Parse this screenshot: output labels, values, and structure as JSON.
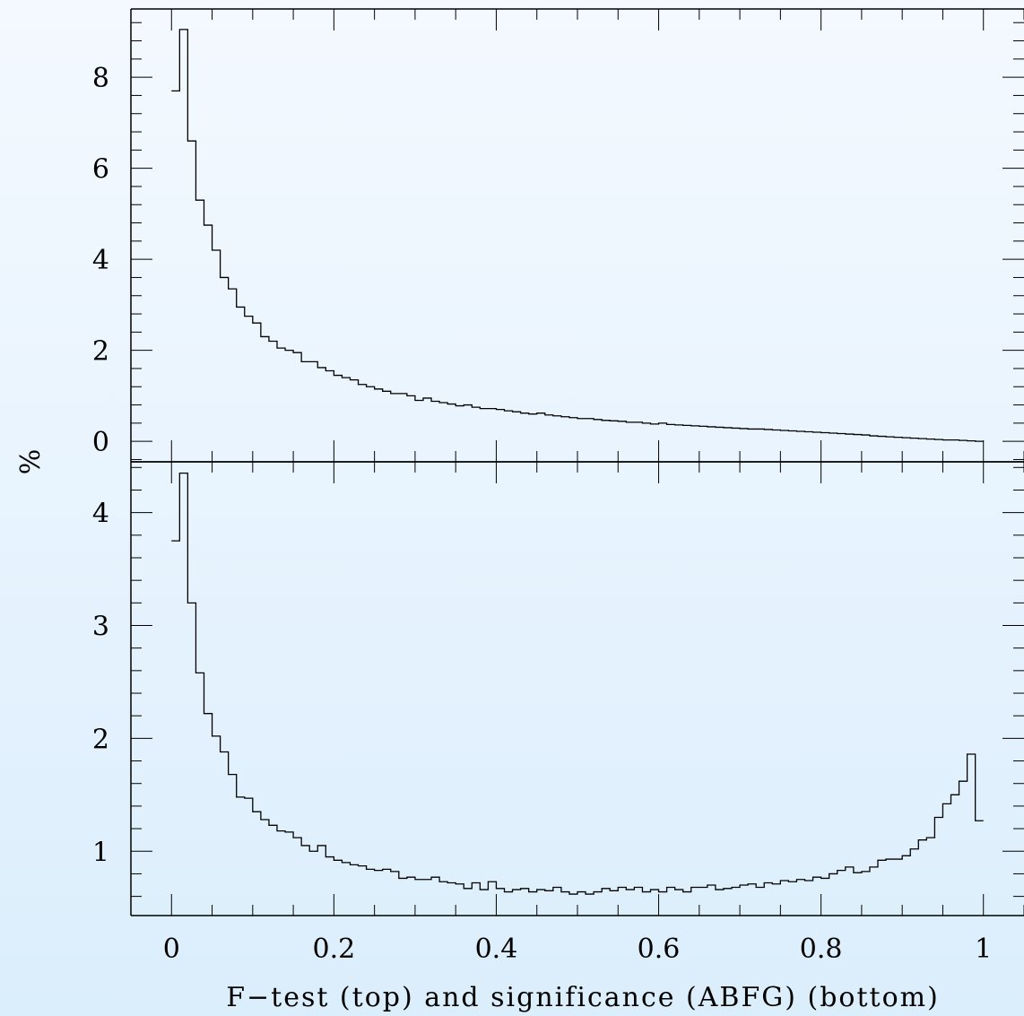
{
  "chart_data": {
    "type": "histogram",
    "xlabel": "F−test (top) and significance (ABFG) (bottom)",
    "ylabel": "%",
    "xlim": [
      -0.05,
      1.05
    ],
    "x_ticks": [
      "0",
      "0.2",
      "0.4",
      "0.6",
      "0.8",
      "1"
    ],
    "bin_width": 0.01,
    "panels": [
      {
        "name": "top",
        "ylim": [
          -0.45,
          9.5
        ],
        "y_ticks": [
          "0",
          "2",
          "4",
          "6",
          "8"
        ],
        "values": [
          7.7,
          9.05,
          6.6,
          5.3,
          4.75,
          4.2,
          3.6,
          3.35,
          2.95,
          2.75,
          2.6,
          2.3,
          2.2,
          2.05,
          2.0,
          1.95,
          1.75,
          1.75,
          1.62,
          1.55,
          1.45,
          1.4,
          1.35,
          1.25,
          1.2,
          1.15,
          1.1,
          1.05,
          1.05,
          1.0,
          0.9,
          0.95,
          0.88,
          0.85,
          0.82,
          0.78,
          0.8,
          0.75,
          0.72,
          0.72,
          0.7,
          0.67,
          0.65,
          0.62,
          0.6,
          0.62,
          0.58,
          0.56,
          0.54,
          0.52,
          0.5,
          0.5,
          0.48,
          0.46,
          0.45,
          0.44,
          0.42,
          0.42,
          0.4,
          0.38,
          0.4,
          0.37,
          0.36,
          0.35,
          0.34,
          0.33,
          0.32,
          0.31,
          0.3,
          0.29,
          0.28,
          0.27,
          0.27,
          0.26,
          0.25,
          0.24,
          0.23,
          0.22,
          0.21,
          0.2,
          0.19,
          0.18,
          0.17,
          0.16,
          0.15,
          0.14,
          0.12,
          0.11,
          0.1,
          0.09,
          0.08,
          0.07,
          0.06,
          0.05,
          0.04,
          0.03,
          0.03,
          0.02,
          0.01,
          0.0
        ]
      },
      {
        "name": "bottom",
        "ylim": [
          0.43,
          4.45
        ],
        "y_ticks": [
          "1",
          "2",
          "3",
          "4"
        ],
        "values": [
          3.75,
          4.35,
          3.2,
          2.58,
          2.22,
          2.02,
          1.88,
          1.68,
          1.48,
          1.47,
          1.35,
          1.28,
          1.23,
          1.18,
          1.17,
          1.12,
          1.05,
          1.0,
          1.05,
          0.95,
          0.92,
          0.9,
          0.88,
          0.87,
          0.84,
          0.83,
          0.84,
          0.82,
          0.76,
          0.77,
          0.75,
          0.75,
          0.77,
          0.73,
          0.72,
          0.71,
          0.67,
          0.72,
          0.66,
          0.73,
          0.67,
          0.64,
          0.66,
          0.67,
          0.64,
          0.66,
          0.65,
          0.68,
          0.64,
          0.62,
          0.64,
          0.62,
          0.64,
          0.67,
          0.65,
          0.68,
          0.66,
          0.68,
          0.64,
          0.66,
          0.64,
          0.68,
          0.66,
          0.64,
          0.68,
          0.68,
          0.7,
          0.66,
          0.67,
          0.68,
          0.7,
          0.71,
          0.68,
          0.72,
          0.71,
          0.74,
          0.73,
          0.75,
          0.74,
          0.77,
          0.76,
          0.8,
          0.83,
          0.86,
          0.81,
          0.82,
          0.86,
          0.92,
          0.93,
          0.93,
          0.96,
          1.02,
          1.1,
          1.12,
          1.3,
          1.42,
          1.5,
          1.62,
          1.86,
          1.27
        ]
      }
    ]
  }
}
